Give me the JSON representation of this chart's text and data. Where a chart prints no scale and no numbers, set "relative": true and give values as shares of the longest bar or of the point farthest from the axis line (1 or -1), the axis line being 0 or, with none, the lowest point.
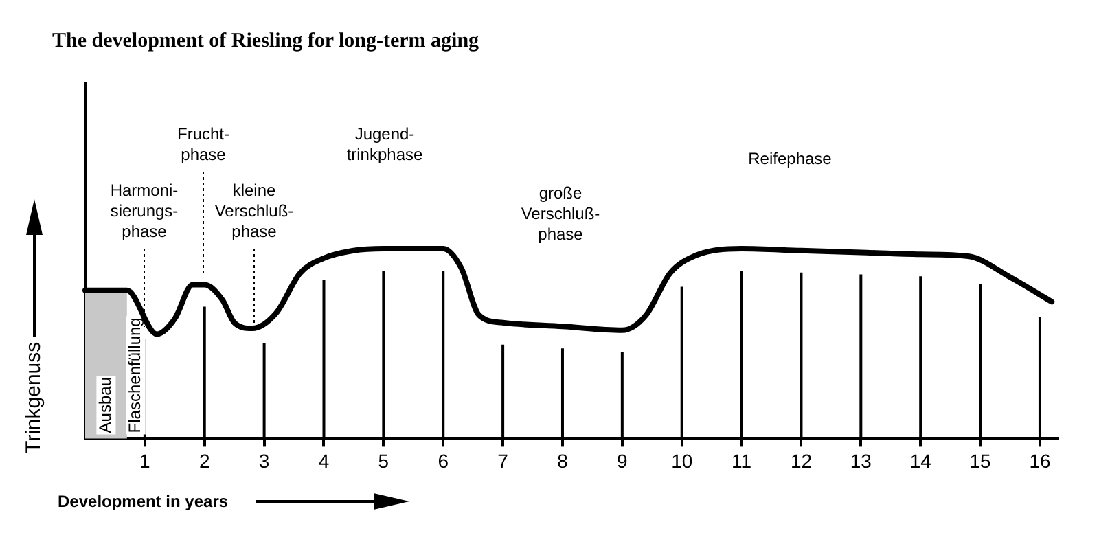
{
  "chart_data": {
    "type": "line",
    "title": "The development of Riesling for long-term aging",
    "xlabel": "Development in years",
    "ylabel": "Trinkgenuss",
    "relative": true,
    "marker": "none",
    "line_style": "solid",
    "legend": false,
    "tick_labels": "x",
    "ref_lines": [
      {
        "axis": "x",
        "value": 1
      },
      {
        "axis": "x",
        "value": 2
      },
      {
        "axis": "x",
        "value": 3
      },
      {
        "axis": "x",
        "value": 4
      },
      {
        "axis": "x",
        "value": 5
      },
      {
        "axis": "x",
        "value": 6
      },
      {
        "axis": "x",
        "value": 7
      },
      {
        "axis": "x",
        "value": 8
      },
      {
        "axis": "x",
        "value": 9
      },
      {
        "axis": "x",
        "value": 10
      },
      {
        "axis": "x",
        "value": 11
      },
      {
        "axis": "x",
        "value": 12
      },
      {
        "axis": "x",
        "value": 13
      },
      {
        "axis": "x",
        "value": 14
      },
      {
        "axis": "x",
        "value": 15
      },
      {
        "axis": "x",
        "value": 16
      }
    ],
    "xlim": [
      0,
      16.3
    ],
    "xticks": [
      1,
      2,
      3,
      4,
      5,
      6,
      7,
      8,
      9,
      10,
      11,
      12,
      13,
      14,
      15,
      16
    ],
    "series": [
      {
        "color": "#000000",
        "x": [
          0,
          0.7,
          1.2,
          1.5,
          1.8,
          2,
          2.3,
          2.5,
          2.8,
          3.2,
          3.6,
          4,
          4.5,
          5,
          6,
          6.3,
          6.6,
          7,
          8,
          9,
          9.4,
          9.8,
          10.2,
          11,
          12,
          13,
          14,
          14.8,
          15.5,
          16.2
        ],
        "values": [
          0.78,
          0.78,
          0.55,
          0.63,
          0.81,
          0.81,
          0.73,
          0.61,
          0.58,
          0.66,
          0.87,
          0.95,
          0.99,
          1,
          1,
          0.9,
          0.65,
          0.61,
          0.59,
          0.57,
          0.65,
          0.87,
          0.96,
          1,
          0.99,
          0.98,
          0.97,
          0.96,
          0.85,
          0.72
        ]
      }
    ],
    "bands": [
      {
        "axis": "x",
        "from": 0,
        "to": 0.7,
        "label": "Ausbau",
        "color": "#c8c8c8"
      },
      {
        "axis": "x",
        "from": 0.7,
        "to": 1,
        "label": "Flaschenfüllung"
      }
    ],
    "annotations": [
      "Harmoni-\nsierungs-\nphase",
      "Frucht-\nphase",
      "kleine\nVerschluß-\nphase",
      "Jugend-\ntrinkphase",
      "große\nVerschluß-\nphase",
      "Reifephase"
    ]
  }
}
